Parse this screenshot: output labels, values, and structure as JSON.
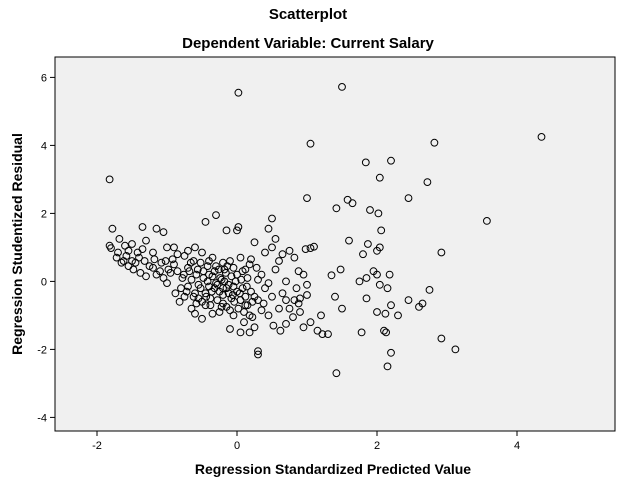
{
  "chart_data": {
    "type": "scatter",
    "title": "Scatterplot",
    "subtitle": "Dependent Variable: Current Salary",
    "xlabel": "Regression Standardized Predicted Value",
    "ylabel": "Regression Studentized Residual",
    "xlim": [
      -2.6,
      5.4
    ],
    "ylim": [
      -4.4,
      6.6
    ],
    "xticks": [
      -2,
      0,
      2,
      4
    ],
    "yticks": [
      -4,
      -2,
      0,
      2,
      4,
      6
    ],
    "xtick_labels": [
      "-2",
      "0",
      "2",
      "4"
    ],
    "ytick_labels": [
      "-4",
      "-2",
      "0",
      "2",
      "4",
      "6"
    ],
    "grid": false,
    "colors": {
      "plot_background": "#f0f0f0",
      "marker_edge": "#000000",
      "frame": "#000000"
    },
    "marker": "hollow-circle",
    "points": [
      [
        0.02,
        5.55
      ],
      [
        1.5,
        5.72
      ],
      [
        4.35,
        4.25
      ],
      [
        1.05,
        4.05
      ],
      [
        2.82,
        4.08
      ],
      [
        -1.82,
        3.0
      ],
      [
        1.84,
        3.5
      ],
      [
        2.2,
        3.55
      ],
      [
        2.04,
        3.05
      ],
      [
        2.72,
        2.92
      ],
      [
        1.0,
        2.45
      ],
      [
        1.58,
        2.4
      ],
      [
        1.65,
        2.3
      ],
      [
        2.45,
        2.45
      ],
      [
        1.42,
        2.15
      ],
      [
        1.9,
        2.1
      ],
      [
        2.02,
        2.0
      ],
      [
        3.57,
        1.78
      ],
      [
        2.06,
        1.5
      ],
      [
        1.6,
        1.2
      ],
      [
        1.87,
        1.1
      ],
      [
        2.0,
        0.9
      ],
      [
        2.04,
        1.0
      ],
      [
        1.8,
        0.8
      ],
      [
        2.92,
        0.85
      ],
      [
        1.05,
        0.98
      ],
      [
        1.1,
        1.02
      ],
      [
        0.98,
        0.95
      ],
      [
        1.48,
        0.35
      ],
      [
        1.35,
        0.18
      ],
      [
        1.95,
        0.3
      ],
      [
        2.18,
        0.2
      ],
      [
        2.0,
        0.2
      ],
      [
        1.75,
        0.0
      ],
      [
        1.85,
        0.1
      ],
      [
        2.75,
        -0.25
      ],
      [
        2.04,
        -0.1
      ],
      [
        2.15,
        -0.2
      ],
      [
        1.4,
        -0.45
      ],
      [
        1.85,
        -0.5
      ],
      [
        2.45,
        -0.55
      ],
      [
        2.65,
        -0.65
      ],
      [
        2.0,
        -0.9
      ],
      [
        2.2,
        -0.7
      ],
      [
        2.3,
        -1.0
      ],
      [
        1.5,
        -0.8
      ],
      [
        2.6,
        -0.75
      ],
      [
        2.12,
        -0.95
      ],
      [
        2.1,
        -1.45
      ],
      [
        2.13,
        -1.5
      ],
      [
        1.78,
        -1.5
      ],
      [
        2.92,
        -1.68
      ],
      [
        3.12,
        -2.0
      ],
      [
        2.2,
        -2.1
      ],
      [
        2.15,
        -2.5
      ],
      [
        1.42,
        -2.7
      ],
      [
        1.3,
        -1.55
      ],
      [
        1.22,
        -1.55
      ],
      [
        1.15,
        -1.45
      ],
      [
        1.2,
        -1.0
      ],
      [
        1.05,
        -1.2
      ],
      [
        0.95,
        -1.35
      ],
      [
        1.0,
        -0.4
      ],
      [
        0.9,
        -0.5
      ],
      [
        0.88,
        -0.65
      ],
      [
        0.82,
        -0.55
      ],
      [
        0.75,
        -0.8
      ],
      [
        0.7,
        -1.25
      ],
      [
        0.62,
        -1.45
      ],
      [
        0.52,
        -1.3
      ],
      [
        0.45,
        -1.0
      ],
      [
        0.38,
        -0.65
      ],
      [
        0.3,
        -0.55
      ],
      [
        0.3,
        -2.05
      ],
      [
        0.3,
        -2.15
      ],
      [
        0.25,
        -1.35
      ],
      [
        0.18,
        -1.5
      ],
      [
        0.1,
        -1.2
      ],
      [
        0.05,
        -1.5
      ],
      [
        -0.1,
        -1.4
      ],
      [
        0.15,
        -0.7
      ],
      [
        0.22,
        -1.05
      ],
      [
        0.4,
        0.85
      ],
      [
        0.5,
        1.0
      ],
      [
        0.55,
        1.25
      ],
      [
        0.6,
        0.6
      ],
      [
        0.65,
        0.8
      ],
      [
        0.75,
        0.9
      ],
      [
        0.82,
        0.7
      ],
      [
        0.88,
        0.3
      ],
      [
        0.95,
        0.2
      ],
      [
        1.0,
        -0.1
      ],
      [
        0.85,
        -0.2
      ],
      [
        0.7,
        0.0
      ],
      [
        0.65,
        -0.35
      ],
      [
        0.35,
        0.2
      ],
      [
        0.28,
        0.4
      ],
      [
        0.18,
        0.5
      ],
      [
        0.12,
        0.35
      ],
      [
        0.05,
        0.7
      ],
      [
        0.45,
        1.55
      ],
      [
        0.5,
        1.85
      ],
      [
        0.25,
        1.15
      ],
      [
        0.0,
        1.5
      ],
      [
        0.02,
        1.6
      ],
      [
        -0.15,
        1.5
      ],
      [
        -0.3,
        1.95
      ],
      [
        -0.45,
        1.75
      ],
      [
        -0.6,
        1.0
      ],
      [
        -0.7,
        0.9
      ],
      [
        -0.85,
        0.8
      ],
      [
        -0.9,
        1.0
      ],
      [
        -1.0,
        1.0
      ],
      [
        -1.05,
        1.45
      ],
      [
        -1.15,
        1.55
      ],
      [
        -1.35,
        1.6
      ],
      [
        -1.3,
        1.2
      ],
      [
        -1.35,
        0.95
      ],
      [
        -1.4,
        0.7
      ],
      [
        -1.45,
        0.55
      ],
      [
        -1.55,
        0.9
      ],
      [
        -1.6,
        1.05
      ],
      [
        -1.68,
        1.25
      ],
      [
        -1.78,
        1.55
      ],
      [
        -1.82,
        1.05
      ],
      [
        -1.8,
        0.98
      ],
      [
        -1.62,
        0.6
      ],
      [
        -1.55,
        0.45
      ],
      [
        -1.48,
        0.35
      ],
      [
        -1.38,
        0.25
      ],
      [
        -1.3,
        0.15
      ],
      [
        -1.2,
        0.4
      ],
      [
        -1.15,
        0.2
      ],
      [
        -1.08,
        0.55
      ],
      [
        -1.05,
        0.1
      ],
      [
        -1.0,
        -0.05
      ],
      [
        -0.95,
        0.25
      ],
      [
        -0.9,
        0.5
      ],
      [
        -0.85,
        0.3
      ],
      [
        -0.8,
        -0.2
      ],
      [
        -0.78,
        0.1
      ],
      [
        -0.72,
        -0.3
      ],
      [
        -0.7,
        0.4
      ],
      [
        -0.65,
        0.05
      ],
      [
        -0.62,
        -0.45
      ],
      [
        -0.58,
        0.2
      ],
      [
        -0.55,
        -0.1
      ],
      [
        -0.52,
        0.55
      ],
      [
        -0.5,
        -0.6
      ],
      [
        -0.48,
        0.3
      ],
      [
        -0.45,
        -0.35
      ],
      [
        -0.42,
        0.0
      ],
      [
        -0.4,
        0.6
      ],
      [
        -0.38,
        -0.7
      ],
      [
        -0.35,
        0.15
      ],
      [
        -0.32,
        -0.2
      ],
      [
        -0.3,
        0.45
      ],
      [
        -0.28,
        -0.55
      ],
      [
        -0.25,
        -0.9
      ],
      [
        -0.22,
        0.05
      ],
      [
        -0.2,
        -0.4
      ],
      [
        -0.18,
        0.35
      ],
      [
        -0.15,
        -0.75
      ],
      [
        -0.12,
        -0.1
      ],
      [
        -0.1,
        0.6
      ],
      [
        -0.08,
        -0.5
      ],
      [
        -0.05,
        -1.0
      ],
      [
        -0.02,
        0.0
      ],
      [
        0.0,
        -0.3
      ],
      [
        0.02,
        -0.8
      ],
      [
        0.05,
        -0.55
      ],
      [
        0.08,
        -0.2
      ],
      [
        0.1,
        -0.9
      ],
      [
        0.12,
        -0.45
      ],
      [
        0.15,
        0.1
      ],
      [
        0.18,
        -1.0
      ],
      [
        0.2,
        -0.3
      ],
      [
        0.22,
        -0.6
      ],
      [
        -0.65,
        -0.8
      ],
      [
        -0.6,
        -0.95
      ],
      [
        -0.55,
        -0.5
      ],
      [
        -0.5,
        -1.1
      ],
      [
        -0.45,
        -0.7
      ],
      [
        -0.4,
        -0.15
      ],
      [
        -0.35,
        -0.95
      ],
      [
        -0.3,
        -0.05
      ],
      [
        -0.25,
        -0.3
      ],
      [
        -0.2,
        -0.65
      ],
      [
        -0.15,
        -0.2
      ],
      [
        -0.1,
        -0.85
      ],
      [
        -0.05,
        -0.15
      ],
      [
        -0.88,
        -0.35
      ],
      [
        -0.82,
        -0.6
      ],
      [
        -0.76,
        0.2
      ],
      [
        -0.7,
        -0.15
      ],
      [
        -0.66,
        0.55
      ],
      [
        -0.6,
        -0.35
      ],
      [
        -0.56,
        0.35
      ],
      [
        -0.52,
        -0.2
      ],
      [
        -0.48,
        0.1
      ],
      [
        -0.44,
        -0.45
      ],
      [
        -0.4,
        0.2
      ],
      [
        -0.36,
        -0.3
      ],
      [
        -0.32,
        0.3
      ],
      [
        -0.28,
        -0.1
      ],
      [
        -0.24,
        0.1
      ],
      [
        -0.2,
        -0.2
      ],
      [
        -0.16,
        0.25
      ],
      [
        -0.12,
        -0.35
      ],
      [
        -0.08,
        0.15
      ],
      [
        -0.04,
        -0.6
      ],
      [
        0.0,
        0.2
      ],
      [
        0.04,
        -0.35
      ],
      [
        0.08,
        0.3
      ],
      [
        0.12,
        -0.7
      ],
      [
        -0.92,
        0.65
      ],
      [
        -0.98,
        0.35
      ],
      [
        -1.02,
        0.6
      ],
      [
        -1.1,
        0.3
      ],
      [
        -1.18,
        0.65
      ],
      [
        -1.25,
        0.45
      ],
      [
        -1.32,
        0.6
      ],
      [
        -1.42,
        0.85
      ],
      [
        -1.5,
        0.6
      ],
      [
        -1.58,
        0.75
      ],
      [
        -1.65,
        0.55
      ],
      [
        -1.72,
        0.7
      ],
      [
        -1.7,
        0.85
      ],
      [
        -1.5,
        1.1
      ],
      [
        -1.2,
        0.85
      ],
      [
        -0.75,
        0.75
      ],
      [
        -0.5,
        0.85
      ],
      [
        -0.35,
        0.7
      ],
      [
        -0.2,
        0.55
      ],
      [
        -0.05,
        0.4
      ],
      [
        0.3,
        0.05
      ],
      [
        0.4,
        -0.2
      ],
      [
        0.5,
        -0.45
      ],
      [
        0.55,
        0.35
      ],
      [
        0.6,
        -0.8
      ],
      [
        0.7,
        -0.55
      ],
      [
        0.8,
        -1.05
      ],
      [
        0.9,
        -0.9
      ],
      [
        0.45,
        -0.05
      ],
      [
        0.35,
        -0.85
      ],
      [
        -0.75,
        -0.45
      ],
      [
        -0.68,
        0.3
      ],
      [
        -0.62,
        0.6
      ],
      [
        -0.58,
        -0.65
      ],
      [
        -0.42,
        0.45
      ],
      [
        -0.38,
        -0.5
      ],
      [
        -0.26,
        0.35
      ],
      [
        -0.22,
        -0.75
      ],
      [
        -0.18,
        0.0
      ],
      [
        -0.14,
        0.45
      ],
      [
        -0.06,
        -0.4
      ],
      [
        0.06,
        0.05
      ],
      [
        0.14,
        -0.15
      ],
      [
        0.2,
        0.65
      ],
      [
        0.25,
        -0.45
      ]
    ]
  }
}
